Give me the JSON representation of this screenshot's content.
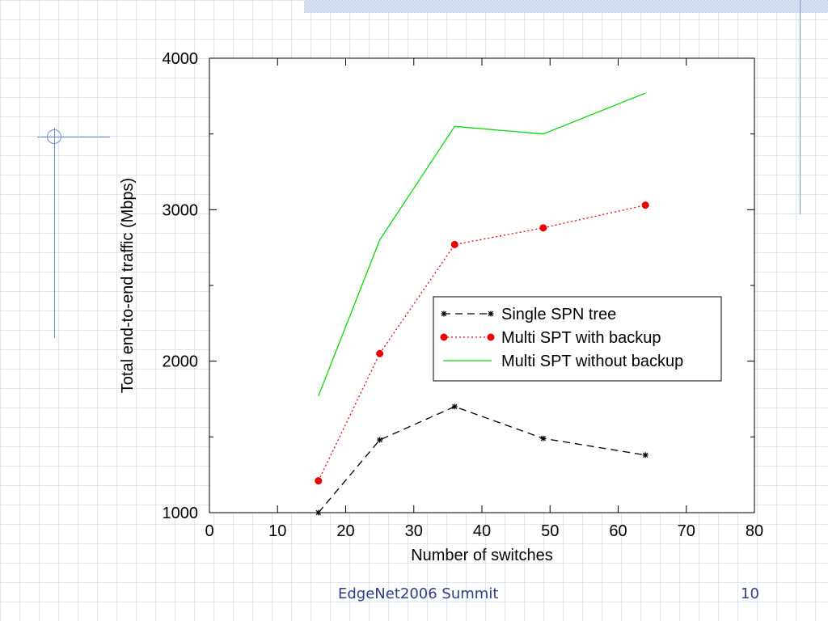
{
  "footer": {
    "text": "EdgeNet2006 Summit",
    "page_number": "10"
  },
  "chart_data": {
    "type": "line",
    "title": "",
    "xlabel": "Number of switches",
    "ylabel": "Total end-to-end traffic (Mbps)",
    "xlim": [
      0,
      80
    ],
    "ylim": [
      1000,
      4000
    ],
    "x_ticks": [
      "0",
      "10",
      "20",
      "30",
      "40",
      "50",
      "60",
      "70",
      "80"
    ],
    "y_ticks": [
      "1000",
      "2000",
      "3000",
      "4000"
    ],
    "grid": false,
    "legend_position": "center-right",
    "series": [
      {
        "name": "Single SPN tree",
        "color": "#000000",
        "style": "dashed",
        "marker": "star",
        "x": [
          16,
          25,
          36,
          49,
          64
        ],
        "y": [
          1000,
          1480,
          1700,
          1490,
          1380
        ]
      },
      {
        "name": "Multi SPT with backup",
        "color": "#ee0000",
        "style": "dotted",
        "marker": "circle",
        "x": [
          16,
          25,
          36,
          49,
          64
        ],
        "y": [
          1210,
          2050,
          2770,
          2880,
          3030
        ]
      },
      {
        "name": "Multi SPT without backup",
        "color": "#00dd00",
        "style": "solid",
        "marker": "none",
        "x": [
          16,
          25,
          36,
          49,
          64
        ],
        "y": [
          1770,
          2800,
          3550,
          3500,
          3770
        ]
      }
    ]
  }
}
